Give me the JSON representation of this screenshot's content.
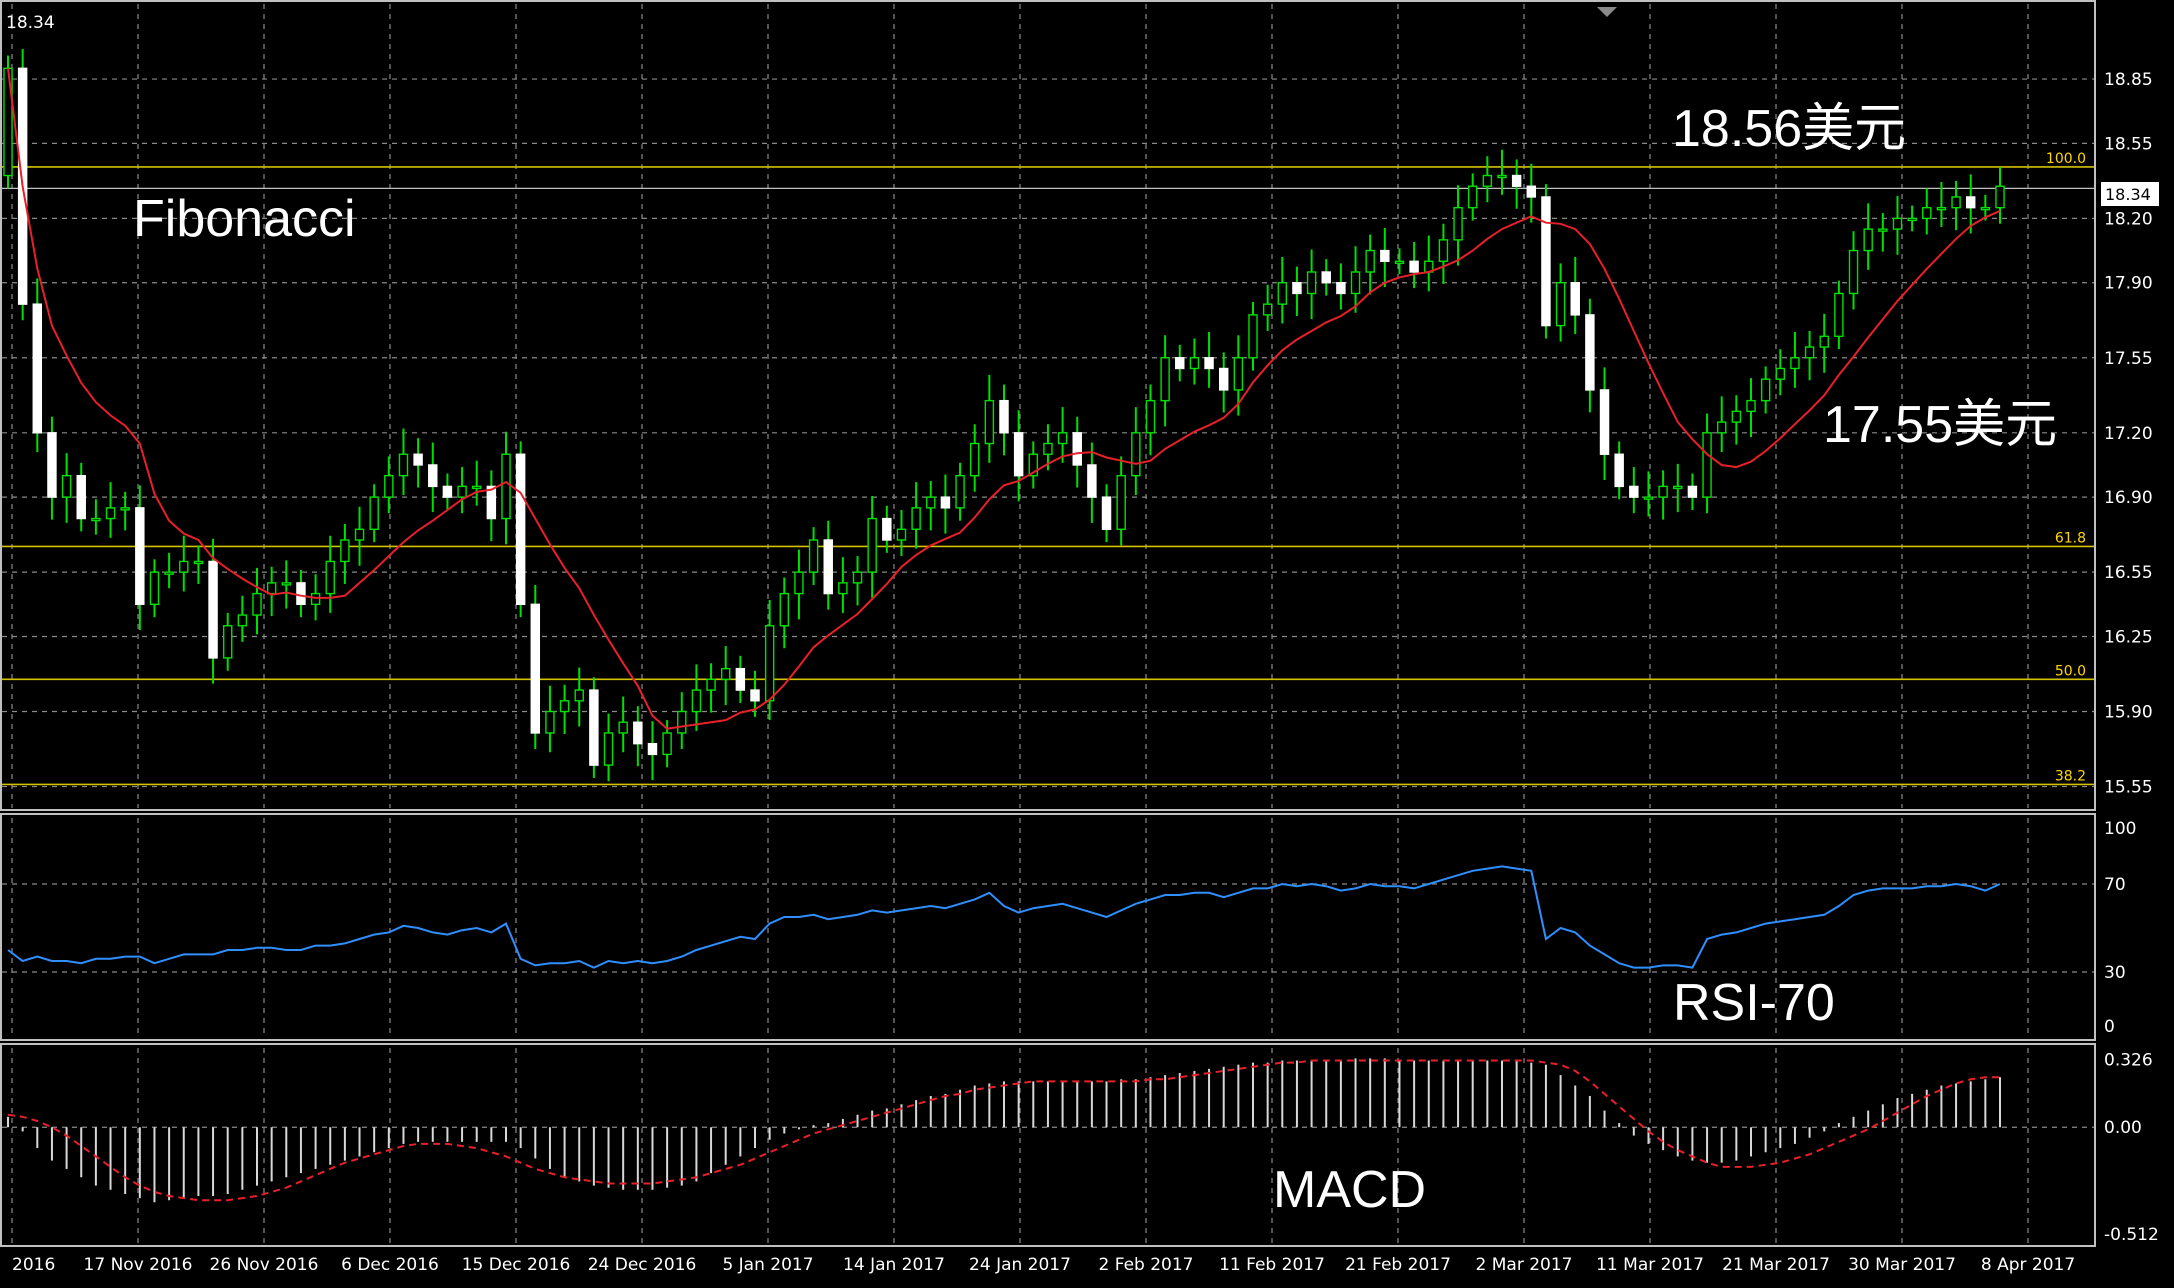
{
  "header": {
    "current_price_text": "18.34"
  },
  "chart_data": [
    {
      "type": "candlestick",
      "name": "price",
      "ylim": [
        15.45,
        19.2
      ],
      "yticks": [
        "18.85",
        "18.55",
        "18.20",
        "17.90",
        "17.55",
        "17.20",
        "16.90",
        "16.55",
        "16.25",
        "15.90",
        "15.55"
      ],
      "current_price_label": "18.34",
      "fibonacci": [
        {
          "label": "100.0",
          "value": 18.44
        },
        {
          "label": "61.8",
          "value": 16.67
        },
        {
          "label": "50.0",
          "value": 16.05
        },
        {
          "label": "38.2",
          "value": 15.56
        }
      ],
      "annotations": {
        "fibonacci": "Fibonacci",
        "high": "18.56美元",
        "low": "17.55美元"
      },
      "x_labels": [
        "2016",
        "17 Nov 2016",
        "26 Nov 2016",
        "6 Dec 2016",
        "15 Dec 2016",
        "24 Dec 2016",
        "5 Jan 2017",
        "14 Jan 2017",
        "24 Jan 2017",
        "2 Feb 2017",
        "11 Feb 2017",
        "21 Feb 2017",
        "2 Mar 2017",
        "11 Mar 2017",
        "21 Mar 2017",
        "30 Mar 2017",
        "8 Apr 2017"
      ],
      "close": [
        18.9,
        17.8,
        17.2,
        16.9,
        17.0,
        16.8,
        16.8,
        16.85,
        16.85,
        16.4,
        16.55,
        16.55,
        16.6,
        16.6,
        16.15,
        16.3,
        16.35,
        16.45,
        16.5,
        16.5,
        16.4,
        16.45,
        16.6,
        16.7,
        16.75,
        16.9,
        17.0,
        17.1,
        17.05,
        16.95,
        16.9,
        16.95,
        16.95,
        16.8,
        17.1,
        16.4,
        15.8,
        15.9,
        15.95,
        16.0,
        15.65,
        15.8,
        15.85,
        15.75,
        15.7,
        15.8,
        15.9,
        16.0,
        16.05,
        16.1,
        16.0,
        15.95,
        16.3,
        16.45,
        16.55,
        16.7,
        16.45,
        16.5,
        16.55,
        16.8,
        16.7,
        16.75,
        16.85,
        16.9,
        16.85,
        17.0,
        17.15,
        17.35,
        17.2,
        17.0,
        17.1,
        17.15,
        17.2,
        17.05,
        16.9,
        16.75,
        17.0,
        17.2,
        17.35,
        17.55,
        17.5,
        17.55,
        17.5,
        17.4,
        17.55,
        17.75,
        17.8,
        17.9,
        17.85,
        17.95,
        17.9,
        17.85,
        17.95,
        18.05,
        18.0,
        18.0,
        17.95,
        18.0,
        18.1,
        18.25,
        18.35,
        18.4,
        18.4,
        18.35,
        18.3,
        17.7,
        17.9,
        17.75,
        17.4,
        17.1,
        16.95,
        16.9,
        16.9,
        16.95,
        16.95,
        16.9,
        17.2,
        17.25,
        17.3,
        17.35,
        17.45,
        17.5,
        17.55,
        17.6,
        17.65,
        17.85,
        18.05,
        18.15,
        18.15,
        18.2,
        18.2,
        18.25,
        18.25,
        18.3,
        18.25,
        18.25,
        18.35
      ]
    },
    {
      "type": "line",
      "name": "RSI-70",
      "label": "RSI-70",
      "ylim": [
        0,
        100
      ],
      "yticks": [
        "100",
        "70",
        "30",
        "0"
      ],
      "values": [
        40,
        35,
        37,
        35,
        35,
        34,
        36,
        36,
        37,
        37,
        34,
        36,
        38,
        38,
        38,
        40,
        40,
        41,
        41,
        40,
        40,
        42,
        42,
        43,
        45,
        47,
        48,
        51,
        50,
        48,
        47,
        49,
        50,
        48,
        52,
        36,
        33,
        34,
        34,
        35,
        32,
        35,
        34,
        35,
        34,
        35,
        37,
        40,
        42,
        44,
        46,
        45,
        52,
        55,
        55,
        56,
        54,
        55,
        56,
        58,
        57,
        58,
        59,
        60,
        59,
        61,
        63,
        66,
        60,
        57,
        59,
        60,
        61,
        59,
        57,
        55,
        58,
        61,
        63,
        65,
        65,
        66,
        66,
        64,
        66,
        68,
        68,
        70,
        69,
        70,
        69,
        67,
        68,
        70,
        69,
        69,
        68,
        70,
        72,
        74,
        76,
        77,
        78,
        77,
        76,
        45,
        50,
        48,
        42,
        38,
        34,
        32,
        32,
        33,
        33,
        32,
        45,
        47,
        48,
        50,
        52,
        53,
        54,
        55,
        56,
        60,
        65,
        67,
        68,
        68,
        68,
        69,
        69,
        70,
        69,
        67,
        70
      ]
    },
    {
      "type": "bar+line",
      "name": "MACD",
      "label": "MACD",
      "ylim": [
        -0.56,
        0.38
      ],
      "yticks": [
        "0.326",
        "0.00",
        "-0.512"
      ],
      "histogram": [
        0.05,
        -0.02,
        -0.1,
        -0.16,
        -0.2,
        -0.24,
        -0.28,
        -0.3,
        -0.32,
        -0.34,
        -0.36,
        -0.35,
        -0.34,
        -0.33,
        -0.33,
        -0.32,
        -0.3,
        -0.28,
        -0.26,
        -0.24,
        -0.22,
        -0.2,
        -0.18,
        -0.16,
        -0.14,
        -0.12,
        -0.1,
        -0.08,
        -0.07,
        -0.07,
        -0.07,
        -0.07,
        -0.07,
        -0.07,
        -0.07,
        -0.1,
        -0.15,
        -0.2,
        -0.24,
        -0.26,
        -0.28,
        -0.29,
        -0.3,
        -0.3,
        -0.3,
        -0.29,
        -0.28,
        -0.26,
        -0.22,
        -0.18,
        -0.14,
        -0.1,
        -0.06,
        -0.03,
        -0.01,
        0.01,
        0.02,
        0.04,
        0.06,
        0.08,
        0.09,
        0.11,
        0.13,
        0.15,
        0.16,
        0.18,
        0.2,
        0.21,
        0.22,
        0.22,
        0.22,
        0.22,
        0.22,
        0.22,
        0.22,
        0.22,
        0.23,
        0.23,
        0.24,
        0.25,
        0.26,
        0.27,
        0.28,
        0.29,
        0.3,
        0.31,
        0.31,
        0.32,
        0.32,
        0.32,
        0.32,
        0.32,
        0.33,
        0.33,
        0.33,
        0.32,
        0.32,
        0.32,
        0.32,
        0.32,
        0.32,
        0.32,
        0.32,
        0.32,
        0.31,
        0.3,
        0.25,
        0.2,
        0.15,
        0.08,
        0.02,
        -0.04,
        -0.08,
        -0.11,
        -0.14,
        -0.16,
        -0.17,
        -0.17,
        -0.16,
        -0.14,
        -0.12,
        -0.1,
        -0.08,
        -0.05,
        -0.02,
        0.02,
        0.05,
        0.08,
        0.11,
        0.14,
        0.16,
        0.18,
        0.2,
        0.21,
        0.22,
        0.23,
        0.24
      ],
      "signal": [
        0.06,
        0.05,
        0.03,
        0.0,
        -0.04,
        -0.09,
        -0.14,
        -0.19,
        -0.24,
        -0.28,
        -0.31,
        -0.33,
        -0.34,
        -0.35,
        -0.35,
        -0.35,
        -0.34,
        -0.33,
        -0.31,
        -0.29,
        -0.26,
        -0.23,
        -0.2,
        -0.17,
        -0.15,
        -0.13,
        -0.11,
        -0.09,
        -0.08,
        -0.08,
        -0.08,
        -0.09,
        -0.1,
        -0.12,
        -0.14,
        -0.17,
        -0.2,
        -0.22,
        -0.24,
        -0.25,
        -0.26,
        -0.27,
        -0.27,
        -0.27,
        -0.27,
        -0.26,
        -0.25,
        -0.24,
        -0.22,
        -0.2,
        -0.18,
        -0.15,
        -0.12,
        -0.09,
        -0.06,
        -0.03,
        -0.01,
        0.01,
        0.03,
        0.05,
        0.07,
        0.09,
        0.11,
        0.13,
        0.15,
        0.16,
        0.18,
        0.19,
        0.2,
        0.21,
        0.22,
        0.22,
        0.22,
        0.22,
        0.22,
        0.22,
        0.22,
        0.22,
        0.23,
        0.23,
        0.24,
        0.25,
        0.26,
        0.27,
        0.28,
        0.29,
        0.3,
        0.31,
        0.31,
        0.32,
        0.32,
        0.32,
        0.32,
        0.32,
        0.32,
        0.32,
        0.32,
        0.32,
        0.32,
        0.32,
        0.32,
        0.32,
        0.32,
        0.32,
        0.32,
        0.31,
        0.3,
        0.27,
        0.22,
        0.16,
        0.1,
        0.04,
        -0.02,
        -0.07,
        -0.11,
        -0.14,
        -0.17,
        -0.19,
        -0.19,
        -0.19,
        -0.18,
        -0.17,
        -0.15,
        -0.13,
        -0.1,
        -0.07,
        -0.04,
        -0.01,
        0.03,
        0.07,
        0.11,
        0.15,
        0.18,
        0.21,
        0.23,
        0.24,
        0.24
      ]
    }
  ]
}
